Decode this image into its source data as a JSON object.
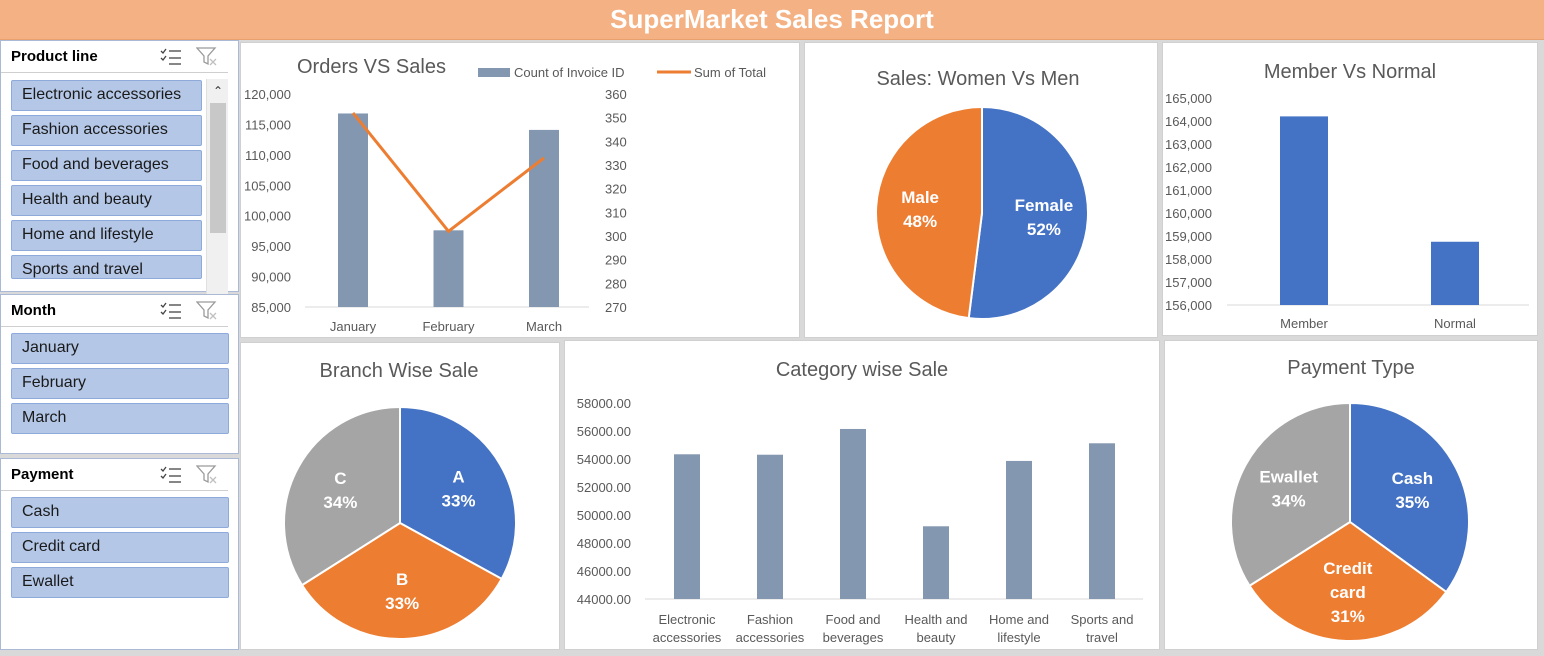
{
  "header": {
    "title": "SuperMarket Sales Report"
  },
  "slicers": {
    "product_line": {
      "title": "Product line",
      "items": [
        "Electronic accessories",
        "Fashion accessories",
        "Food and beverages",
        "Health and beauty",
        "Home and lifestyle",
        "Sports and travel"
      ]
    },
    "month": {
      "title": "Month",
      "items": [
        "January",
        "February",
        "March"
      ]
    },
    "payment": {
      "title": "Payment",
      "items": [
        "Cash",
        "Credit card",
        "Ewallet"
      ]
    }
  },
  "colors": {
    "bar": "#8497b0",
    "line": "#ed7d31",
    "blue": "#4472c4",
    "orange": "#ed7d31",
    "gray": "#a5a5a5",
    "header": "#f4b183",
    "slicer_item": "#b4c7e7"
  },
  "chart_data": [
    {
      "type": "bar",
      "title": "Orders VS Sales",
      "categories": [
        "January",
        "February",
        "March"
      ],
      "series": [
        {
          "name": "Count of Invoice ID",
          "type": "bar",
          "axis": "left",
          "values": [
            116800,
            97600,
            114100
          ]
        },
        {
          "name": "Sum of Total",
          "type": "line",
          "axis": "right",
          "values": [
            352,
            302,
            333
          ]
        }
      ],
      "ylim": [
        85000,
        120000
      ],
      "y_ticks": [
        "120,000",
        "115,000",
        "110,000",
        "105,000",
        "100,000",
        "95,000",
        "90,000",
        "85,000"
      ],
      "y2lim": [
        270,
        360
      ],
      "y2_ticks": [
        "360",
        "350",
        "340",
        "330",
        "320",
        "310",
        "300",
        "290",
        "280",
        "270"
      ],
      "legend": "top"
    },
    {
      "type": "pie",
      "title": "Sales: Women Vs Men",
      "labels": [
        "Female",
        "Male"
      ],
      "values": [
        52,
        48
      ],
      "display": [
        "52%",
        "48%"
      ]
    },
    {
      "type": "bar",
      "title": "Member Vs Normal",
      "categories": [
        "Member",
        "Normal"
      ],
      "values": [
        164200,
        158750
      ],
      "ylim": [
        156000,
        165000
      ],
      "y_ticks": [
        "165,000",
        "164,000",
        "163,000",
        "162,000",
        "161,000",
        "160,000",
        "159,000",
        "158,000",
        "157,000",
        "156,000"
      ]
    },
    {
      "type": "pie",
      "title": "Branch Wise Sale",
      "labels": [
        "A",
        "B",
        "C"
      ],
      "values": [
        33,
        33,
        34
      ],
      "display": [
        "33%",
        "33%",
        "34%"
      ]
    },
    {
      "type": "bar",
      "title": "Category wise Sale",
      "categories": [
        "Electronic accessories",
        "Fashion accessories",
        "Food and beverages",
        "Health and beauty",
        "Home and lifestyle",
        "Sports and travel"
      ],
      "category_lines": [
        [
          "Electronic",
          "accessories"
        ],
        [
          "Fashion",
          "accessories"
        ],
        [
          "Food and",
          "beverages"
        ],
        [
          "Health and",
          "beauty"
        ],
        [
          "Home and",
          "lifestyle"
        ],
        [
          "Sports and",
          "travel"
        ]
      ],
      "values": [
        54337.53,
        54305.9,
        56144.84,
        49193.74,
        53861.91,
        55122.83
      ],
      "ylim": [
        44000,
        58000
      ],
      "y_ticks": [
        "58000.00",
        "56000.00",
        "54000.00",
        "52000.00",
        "50000.00",
        "48000.00",
        "46000.00",
        "44000.00"
      ]
    },
    {
      "type": "pie",
      "title": "Payment Type",
      "labels": [
        "Cash",
        "Credit card",
        "Ewallet"
      ],
      "label_lines": [
        [
          "Cash"
        ],
        [
          "Credit",
          "card"
        ],
        [
          "Ewallet"
        ]
      ],
      "values": [
        35,
        31,
        34
      ],
      "display": [
        "35%",
        "31%",
        "34%"
      ]
    }
  ]
}
